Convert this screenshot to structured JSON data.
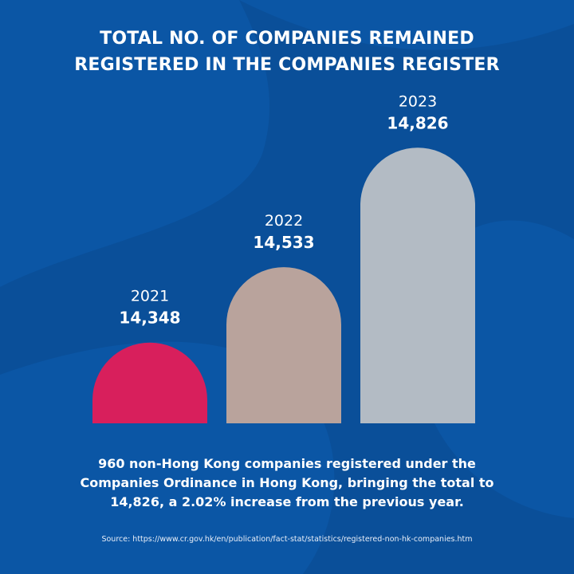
{
  "title": {
    "line1": "TOTAL NO. OF COMPANIES REMAINED",
    "line2": "REGISTERED IN THE COMPANIES REGISTER"
  },
  "chart_data": {
    "type": "bar",
    "title": "TOTAL NO. OF COMPANIES REMAINED REGISTERED IN THE COMPANIES REGISTER",
    "categories": [
      "2021",
      "2022",
      "2023"
    ],
    "values": [
      14348,
      14533,
      14826
    ],
    "value_labels": [
      "14,348",
      "14,533",
      "14,826"
    ],
    "colors": [
      "#d81f5c",
      "#b9a39c",
      "#b3bbc4"
    ],
    "xlabel": "",
    "ylabel": "",
    "grid": false,
    "legend": "none"
  },
  "caption": {
    "line1": "960 non-Hong Kong companies registered under the",
    "line2": "Companies Ordinance in Hong Kong, bringing the total to",
    "line3": "14,826, a 2.02% increase from the previous year."
  },
  "source": "Source: https://www.cr.gov.hk/en/publication/fact-stat/statistics/registered-non-hk-companies.htm",
  "colors": {
    "background": "#0b56a5",
    "swirl": "#0a4d97",
    "text": "#ffffff"
  }
}
